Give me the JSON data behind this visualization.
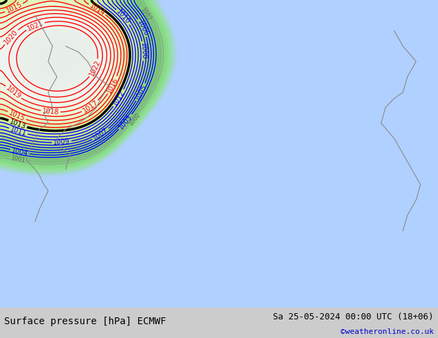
{
  "title_left": "Surface pressure [hPa] ECMWF",
  "title_right": "Sa 25-05-2024 00:00 UTC (18+06)",
  "watermark": "©weatheronline.co.uk",
  "watermark_color": "#0000cc",
  "background_color": "#ffffff",
  "footer_bg": "#d0d0d0",
  "figsize": [
    6.34,
    4.9
  ],
  "dpi": 100
}
